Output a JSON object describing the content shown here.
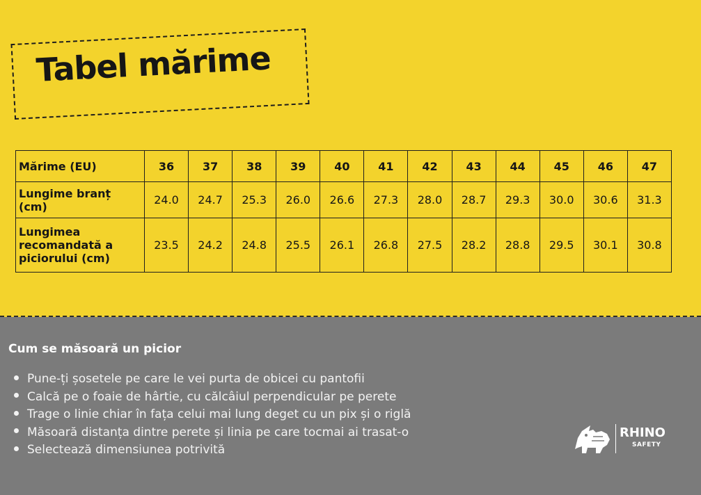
{
  "title": "Tabel mărime",
  "size_table": {
    "header_label": "Mărime (EU)",
    "sizes": [
      "36",
      "37",
      "38",
      "39",
      "40",
      "41",
      "42",
      "43",
      "44",
      "45",
      "46",
      "47"
    ],
    "rows": [
      {
        "label": "Lungime branț (cm)",
        "values": [
          "24.0",
          "24.7",
          "25.3",
          "26.0",
          "26.6",
          "27.3",
          "28.0",
          "28.7",
          "29.3",
          "30.0",
          "30.6",
          "31.3"
        ]
      },
      {
        "label": "Lungimea recomandată a piciorului (cm)",
        "values": [
          "23.5",
          "24.2",
          "24.8",
          "25.5",
          "26.1",
          "26.8",
          "27.5",
          "28.2",
          "28.8",
          "29.5",
          "30.1",
          "30.8"
        ]
      }
    ]
  },
  "how_to": {
    "title": "Cum se măsoară un picior",
    "steps": [
      "Pune-ți șosetele pe care le vei purta de obicei cu pantofii",
      "Calcă pe o foaie de hârtie, cu călcâiul perpendicular pe perete",
      "Trage o linie chiar în fața celui mai lung deget cu un pix și o riglă",
      "Măsoară distanța dintre perete și linia pe care tocmai ai trasat-o",
      "Selectează dimensiunea potrivită"
    ]
  },
  "logo": {
    "word": "RHINO",
    "sub": "SAFETY",
    "icon": "rhino-icon"
  },
  "colors": {
    "yellow": "#f3d32c",
    "gray": "#7b7b7b",
    "text_dark": "#161616",
    "text_light": "#ffffff"
  }
}
